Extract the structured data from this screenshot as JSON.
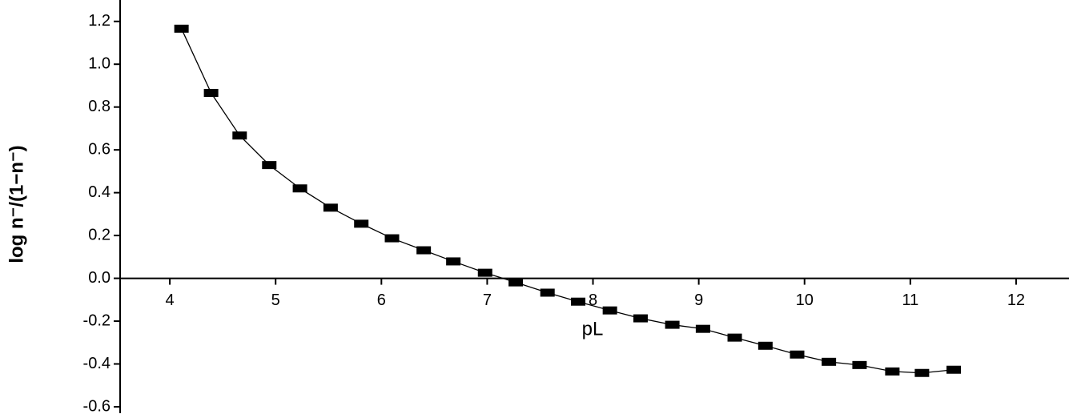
{
  "chart_data": {
    "type": "line",
    "x_label": "pL",
    "y_label": "log n⁻/(1−n⁻)",
    "x": [
      4.11,
      4.39,
      4.66,
      4.94,
      5.23,
      5.52,
      5.81,
      6.1,
      6.4,
      6.68,
      6.98,
      7.27,
      7.57,
      7.86,
      8.16,
      8.45,
      8.75,
      9.04,
      9.34,
      9.63,
      9.93,
      10.23,
      10.52,
      10.83,
      11.11,
      11.41
    ],
    "series": [
      {
        "color": "#000000",
        "values": [
          1.166,
          0.866,
          0.667,
          0.529,
          0.42,
          0.33,
          0.255,
          0.187,
          0.131,
          0.079,
          0.026,
          -0.019,
          -0.067,
          -0.109,
          -0.15,
          -0.187,
          -0.217,
          -0.236,
          -0.277,
          -0.315,
          -0.356,
          -0.39,
          -0.405,
          -0.435,
          -0.442,
          -0.427
        ]
      }
    ],
    "xlim": [
      3.53,
      12.5
    ],
    "ylim": [
      -0.63,
      1.3
    ],
    "xticks": [
      4,
      5,
      6,
      7,
      8,
      9,
      10,
      11,
      12
    ],
    "yticks": [
      {
        "value": -0.6,
        "label": "-0.6"
      },
      -0.4,
      -0.2,
      {
        "value": 0,
        "label": "0.0"
      },
      0.2,
      0.4,
      0.6,
      0.8,
      {
        "value": 1,
        "label": "1.0"
      },
      1.2
    ]
  }
}
